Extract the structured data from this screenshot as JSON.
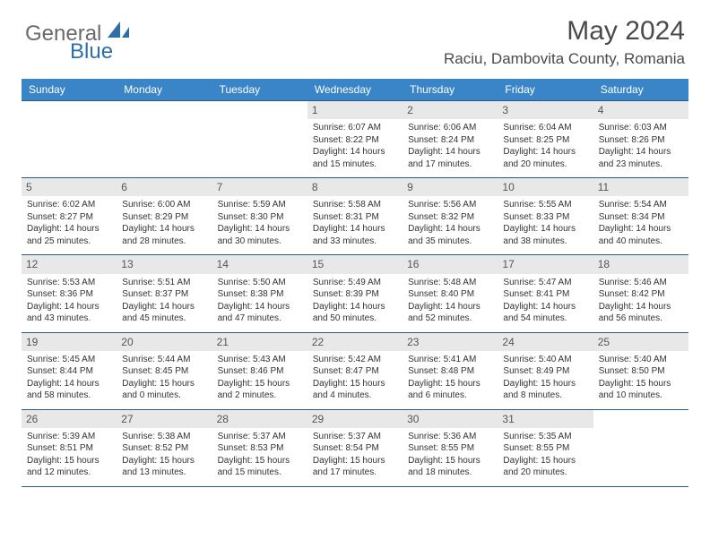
{
  "brand": {
    "word1": "General",
    "word2": "Blue"
  },
  "title": {
    "month": "May 2024",
    "location": "Raciu, Dambovita County, Romania"
  },
  "colors": {
    "header_bg": "#3a85c7",
    "header_text": "#ffffff",
    "cell_border": "#2a5a8a",
    "daynum_bg": "#e8e8e8",
    "body_text": "#333333",
    "brand_gray": "#6a6a6a",
    "brand_blue": "#2f6fa8"
  },
  "weekdays": [
    "Sunday",
    "Monday",
    "Tuesday",
    "Wednesday",
    "Thursday",
    "Friday",
    "Saturday"
  ],
  "weeks": [
    [
      {
        "day": "",
        "sunrise": "",
        "sunset": "",
        "daylight": ""
      },
      {
        "day": "",
        "sunrise": "",
        "sunset": "",
        "daylight": ""
      },
      {
        "day": "",
        "sunrise": "",
        "sunset": "",
        "daylight": ""
      },
      {
        "day": "1",
        "sunrise": "Sunrise: 6:07 AM",
        "sunset": "Sunset: 8:22 PM",
        "daylight": "Daylight: 14 hours and 15 minutes."
      },
      {
        "day": "2",
        "sunrise": "Sunrise: 6:06 AM",
        "sunset": "Sunset: 8:24 PM",
        "daylight": "Daylight: 14 hours and 17 minutes."
      },
      {
        "day": "3",
        "sunrise": "Sunrise: 6:04 AM",
        "sunset": "Sunset: 8:25 PM",
        "daylight": "Daylight: 14 hours and 20 minutes."
      },
      {
        "day": "4",
        "sunrise": "Sunrise: 6:03 AM",
        "sunset": "Sunset: 8:26 PM",
        "daylight": "Daylight: 14 hours and 23 minutes."
      }
    ],
    [
      {
        "day": "5",
        "sunrise": "Sunrise: 6:02 AM",
        "sunset": "Sunset: 8:27 PM",
        "daylight": "Daylight: 14 hours and 25 minutes."
      },
      {
        "day": "6",
        "sunrise": "Sunrise: 6:00 AM",
        "sunset": "Sunset: 8:29 PM",
        "daylight": "Daylight: 14 hours and 28 minutes."
      },
      {
        "day": "7",
        "sunrise": "Sunrise: 5:59 AM",
        "sunset": "Sunset: 8:30 PM",
        "daylight": "Daylight: 14 hours and 30 minutes."
      },
      {
        "day": "8",
        "sunrise": "Sunrise: 5:58 AM",
        "sunset": "Sunset: 8:31 PM",
        "daylight": "Daylight: 14 hours and 33 minutes."
      },
      {
        "day": "9",
        "sunrise": "Sunrise: 5:56 AM",
        "sunset": "Sunset: 8:32 PM",
        "daylight": "Daylight: 14 hours and 35 minutes."
      },
      {
        "day": "10",
        "sunrise": "Sunrise: 5:55 AM",
        "sunset": "Sunset: 8:33 PM",
        "daylight": "Daylight: 14 hours and 38 minutes."
      },
      {
        "day": "11",
        "sunrise": "Sunrise: 5:54 AM",
        "sunset": "Sunset: 8:34 PM",
        "daylight": "Daylight: 14 hours and 40 minutes."
      }
    ],
    [
      {
        "day": "12",
        "sunrise": "Sunrise: 5:53 AM",
        "sunset": "Sunset: 8:36 PM",
        "daylight": "Daylight: 14 hours and 43 minutes."
      },
      {
        "day": "13",
        "sunrise": "Sunrise: 5:51 AM",
        "sunset": "Sunset: 8:37 PM",
        "daylight": "Daylight: 14 hours and 45 minutes."
      },
      {
        "day": "14",
        "sunrise": "Sunrise: 5:50 AM",
        "sunset": "Sunset: 8:38 PM",
        "daylight": "Daylight: 14 hours and 47 minutes."
      },
      {
        "day": "15",
        "sunrise": "Sunrise: 5:49 AM",
        "sunset": "Sunset: 8:39 PM",
        "daylight": "Daylight: 14 hours and 50 minutes."
      },
      {
        "day": "16",
        "sunrise": "Sunrise: 5:48 AM",
        "sunset": "Sunset: 8:40 PM",
        "daylight": "Daylight: 14 hours and 52 minutes."
      },
      {
        "day": "17",
        "sunrise": "Sunrise: 5:47 AM",
        "sunset": "Sunset: 8:41 PM",
        "daylight": "Daylight: 14 hours and 54 minutes."
      },
      {
        "day": "18",
        "sunrise": "Sunrise: 5:46 AM",
        "sunset": "Sunset: 8:42 PM",
        "daylight": "Daylight: 14 hours and 56 minutes."
      }
    ],
    [
      {
        "day": "19",
        "sunrise": "Sunrise: 5:45 AM",
        "sunset": "Sunset: 8:44 PM",
        "daylight": "Daylight: 14 hours and 58 minutes."
      },
      {
        "day": "20",
        "sunrise": "Sunrise: 5:44 AM",
        "sunset": "Sunset: 8:45 PM",
        "daylight": "Daylight: 15 hours and 0 minutes."
      },
      {
        "day": "21",
        "sunrise": "Sunrise: 5:43 AM",
        "sunset": "Sunset: 8:46 PM",
        "daylight": "Daylight: 15 hours and 2 minutes."
      },
      {
        "day": "22",
        "sunrise": "Sunrise: 5:42 AM",
        "sunset": "Sunset: 8:47 PM",
        "daylight": "Daylight: 15 hours and 4 minutes."
      },
      {
        "day": "23",
        "sunrise": "Sunrise: 5:41 AM",
        "sunset": "Sunset: 8:48 PM",
        "daylight": "Daylight: 15 hours and 6 minutes."
      },
      {
        "day": "24",
        "sunrise": "Sunrise: 5:40 AM",
        "sunset": "Sunset: 8:49 PM",
        "daylight": "Daylight: 15 hours and 8 minutes."
      },
      {
        "day": "25",
        "sunrise": "Sunrise: 5:40 AM",
        "sunset": "Sunset: 8:50 PM",
        "daylight": "Daylight: 15 hours and 10 minutes."
      }
    ],
    [
      {
        "day": "26",
        "sunrise": "Sunrise: 5:39 AM",
        "sunset": "Sunset: 8:51 PM",
        "daylight": "Daylight: 15 hours and 12 minutes."
      },
      {
        "day": "27",
        "sunrise": "Sunrise: 5:38 AM",
        "sunset": "Sunset: 8:52 PM",
        "daylight": "Daylight: 15 hours and 13 minutes."
      },
      {
        "day": "28",
        "sunrise": "Sunrise: 5:37 AM",
        "sunset": "Sunset: 8:53 PM",
        "daylight": "Daylight: 15 hours and 15 minutes."
      },
      {
        "day": "29",
        "sunrise": "Sunrise: 5:37 AM",
        "sunset": "Sunset: 8:54 PM",
        "daylight": "Daylight: 15 hours and 17 minutes."
      },
      {
        "day": "30",
        "sunrise": "Sunrise: 5:36 AM",
        "sunset": "Sunset: 8:55 PM",
        "daylight": "Daylight: 15 hours and 18 minutes."
      },
      {
        "day": "31",
        "sunrise": "Sunrise: 5:35 AM",
        "sunset": "Sunset: 8:55 PM",
        "daylight": "Daylight: 15 hours and 20 minutes."
      },
      {
        "day": "",
        "sunrise": "",
        "sunset": "",
        "daylight": ""
      }
    ]
  ]
}
